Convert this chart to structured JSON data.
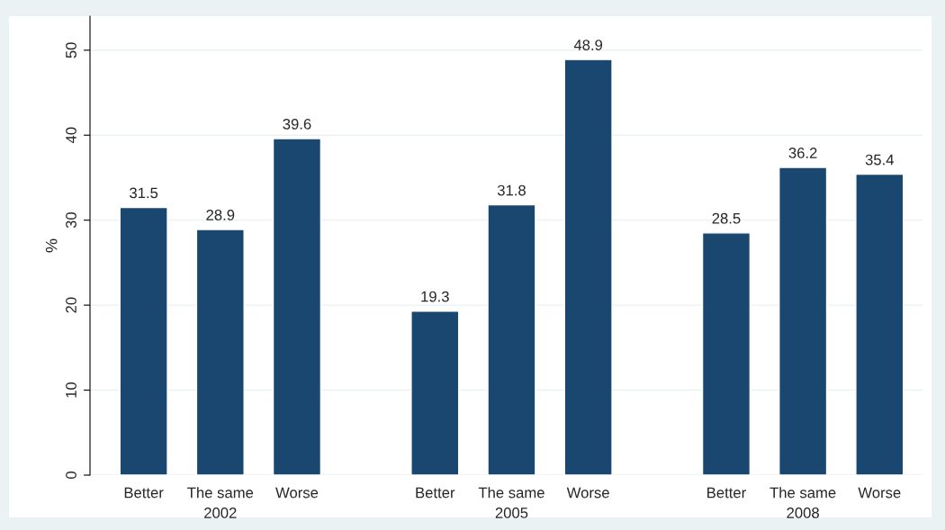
{
  "chart_data": {
    "type": "bar",
    "ylabel": "%",
    "categories": [
      "Better",
      "The same",
      "Worse",
      "Better",
      "The same",
      "Worse",
      "Better",
      "The same",
      "Worse"
    ],
    "values": [
      31.5,
      28.9,
      39.6,
      19.3,
      31.8,
      48.9,
      28.5,
      36.2,
      35.4
    ],
    "color": "#1a476f",
    "ylim": [
      0,
      54
    ],
    "yticks": [
      0,
      10,
      20,
      30,
      40,
      50
    ],
    "grid": "y",
    "data_labels": true,
    "annotations": [
      "2002",
      "2005",
      "2008"
    ]
  }
}
